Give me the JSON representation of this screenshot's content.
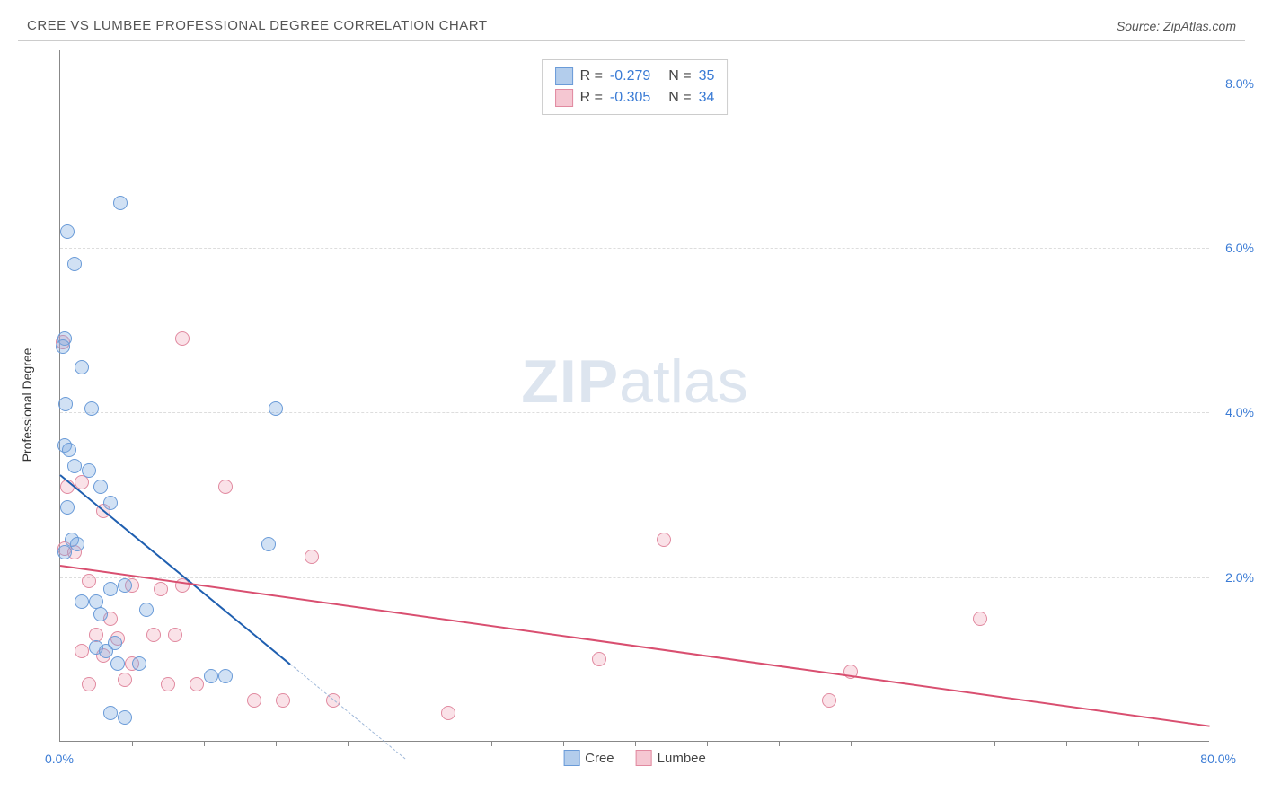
{
  "header": {
    "title": "CREE VS LUMBEE PROFESSIONAL DEGREE CORRELATION CHART",
    "source": "Source: ZipAtlas.com"
  },
  "watermark": {
    "zip": "ZIP",
    "rest": "atlas"
  },
  "chart": {
    "type": "scatter",
    "ylabel": "Professional Degree",
    "xlim": [
      0,
      80
    ],
    "ylim": [
      0,
      8.4
    ],
    "x_min_label": "0.0%",
    "x_max_label": "80.0%",
    "ytick_values": [
      2.0,
      4.0,
      6.0,
      8.0
    ],
    "ytick_labels": [
      "2.0%",
      "4.0%",
      "6.0%",
      "8.0%"
    ],
    "xtick_positions": [
      5,
      10,
      15,
      20,
      25,
      30,
      35,
      40,
      45,
      50,
      55,
      60,
      65,
      70,
      75
    ],
    "background_color": "#ffffff",
    "grid_color": "#dddddd",
    "axis_color": "#888888",
    "label_color_blue": "#3a7bd5",
    "marker_radius": 8,
    "marker_stroke_width": 1,
    "series": {
      "cree": {
        "label": "Cree",
        "fill": "rgba(122,168,224,0.35)",
        "stroke": "#6a9bd8",
        "swatch_fill": "#b3cdec",
        "swatch_stroke": "#6a9bd8",
        "r": -0.279,
        "n": 35,
        "trend": {
          "color": "#1f5fb0",
          "width": 2,
          "x1": 0,
          "y1": 3.25,
          "x2": 16,
          "y2": 0.95,
          "dash_x2": 24,
          "dash_y2": -0.2
        },
        "points": [
          {
            "x": 0.5,
            "y": 6.2
          },
          {
            "x": 4.2,
            "y": 6.55
          },
          {
            "x": 1.0,
            "y": 5.8
          },
          {
            "x": 0.3,
            "y": 4.9
          },
          {
            "x": 0.2,
            "y": 4.8
          },
          {
            "x": 1.5,
            "y": 4.55
          },
          {
            "x": 0.4,
            "y": 4.1
          },
          {
            "x": 2.2,
            "y": 4.05
          },
          {
            "x": 15.0,
            "y": 4.05
          },
          {
            "x": 0.3,
            "y": 3.6
          },
          {
            "x": 0.6,
            "y": 3.55
          },
          {
            "x": 1.0,
            "y": 3.35
          },
          {
            "x": 2.0,
            "y": 3.3
          },
          {
            "x": 2.8,
            "y": 3.1
          },
          {
            "x": 0.5,
            "y": 2.85
          },
          {
            "x": 3.5,
            "y": 2.9
          },
          {
            "x": 0.8,
            "y": 2.45
          },
          {
            "x": 1.2,
            "y": 2.4
          },
          {
            "x": 14.5,
            "y": 2.4
          },
          {
            "x": 0.3,
            "y": 2.3
          },
          {
            "x": 1.5,
            "y": 1.7
          },
          {
            "x": 2.5,
            "y": 1.7
          },
          {
            "x": 3.5,
            "y": 1.85
          },
          {
            "x": 4.5,
            "y": 1.9
          },
          {
            "x": 6.0,
            "y": 1.6
          },
          {
            "x": 2.8,
            "y": 1.55
          },
          {
            "x": 3.8,
            "y": 1.2
          },
          {
            "x": 2.5,
            "y": 1.15
          },
          {
            "x": 3.2,
            "y": 1.1
          },
          {
            "x": 4.0,
            "y": 0.95
          },
          {
            "x": 5.5,
            "y": 0.95
          },
          {
            "x": 11.5,
            "y": 0.8
          },
          {
            "x": 3.5,
            "y": 0.35
          },
          {
            "x": 4.5,
            "y": 0.3
          },
          {
            "x": 10.5,
            "y": 0.8
          }
        ]
      },
      "lumbee": {
        "label": "Lumbee",
        "fill": "rgba(240,160,180,0.30)",
        "stroke": "#e18aa0",
        "swatch_fill": "#f5c7d2",
        "swatch_stroke": "#e18aa0",
        "r": -0.305,
        "n": 34,
        "trend": {
          "color": "#d94f70",
          "width": 2,
          "x1": 0,
          "y1": 2.15,
          "x2": 80,
          "y2": 0.2
        },
        "points": [
          {
            "x": 0.2,
            "y": 4.85
          },
          {
            "x": 8.5,
            "y": 4.9
          },
          {
            "x": 0.5,
            "y": 3.1
          },
          {
            "x": 1.5,
            "y": 3.15
          },
          {
            "x": 11.5,
            "y": 3.1
          },
          {
            "x": 3.0,
            "y": 2.8
          },
          {
            "x": 0.3,
            "y": 2.35
          },
          {
            "x": 1.0,
            "y": 2.3
          },
          {
            "x": 17.5,
            "y": 2.25
          },
          {
            "x": 42.0,
            "y": 2.45
          },
          {
            "x": 2.0,
            "y": 1.95
          },
          {
            "x": 5.0,
            "y": 1.9
          },
          {
            "x": 7.0,
            "y": 1.85
          },
          {
            "x": 8.5,
            "y": 1.9
          },
          {
            "x": 3.5,
            "y": 1.5
          },
          {
            "x": 64.0,
            "y": 1.5
          },
          {
            "x": 2.5,
            "y": 1.3
          },
          {
            "x": 4.0,
            "y": 1.25
          },
          {
            "x": 6.5,
            "y": 1.3
          },
          {
            "x": 8.0,
            "y": 1.3
          },
          {
            "x": 1.5,
            "y": 1.1
          },
          {
            "x": 3.0,
            "y": 1.05
          },
          {
            "x": 5.0,
            "y": 0.95
          },
          {
            "x": 37.5,
            "y": 1.0
          },
          {
            "x": 55.0,
            "y": 0.85
          },
          {
            "x": 2.0,
            "y": 0.7
          },
          {
            "x": 4.5,
            "y": 0.75
          },
          {
            "x": 7.5,
            "y": 0.7
          },
          {
            "x": 9.5,
            "y": 0.7
          },
          {
            "x": 13.5,
            "y": 0.5
          },
          {
            "x": 15.5,
            "y": 0.5
          },
          {
            "x": 19.0,
            "y": 0.5
          },
          {
            "x": 27.0,
            "y": 0.35
          },
          {
            "x": 53.5,
            "y": 0.5
          }
        ]
      }
    }
  }
}
